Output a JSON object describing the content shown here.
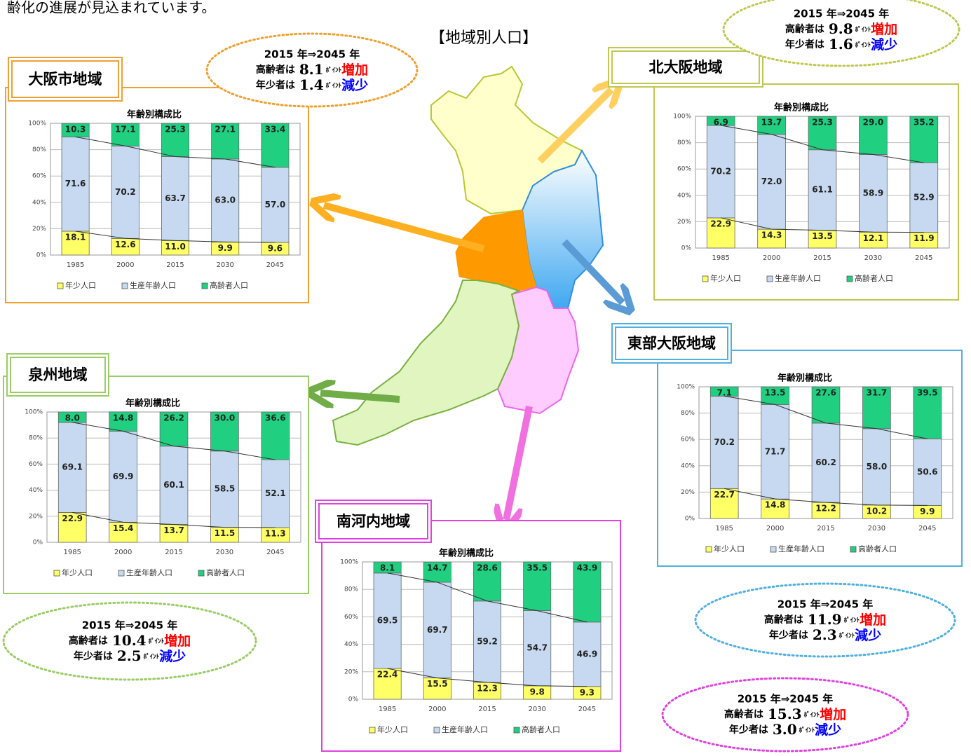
{
  "header": {
    "intro": "齢化の進展が見込まれています。",
    "map_title": "【地域別人口】"
  },
  "chart_data": [
    {
      "type": "bar",
      "stacked": true,
      "region": "大阪市地域",
      "title": "年齢別構成比",
      "border_color": "#f0a030",
      "categories": [
        "1985",
        "2000",
        "2015",
        "2030",
        "2045"
      ],
      "ylim": [
        0,
        100
      ],
      "yticks": [
        {
          "value": 0,
          "label": "0%"
        },
        {
          "value": 20,
          "label": "20%"
        },
        {
          "value": 40,
          "label": "40%"
        },
        {
          "value": 60,
          "label": "60%"
        },
        {
          "value": 80,
          "label": "80%"
        },
        {
          "value": 100,
          "label": "100%"
        }
      ],
      "grid": true,
      "series": [
        {
          "name": "年少人口",
          "color": "#ffff66",
          "values": [
            18.1,
            12.6,
            11.0,
            9.9,
            9.6
          ],
          "value_labels": [
            "18.1",
            "12.6",
            "11.0",
            "9.9",
            "9.6"
          ]
        },
        {
          "name": "生産年齢人口",
          "color": "#c6d9f0",
          "values": [
            71.6,
            70.2,
            63.7,
            63.0,
            57.0
          ],
          "value_labels": [
            "71.6",
            "70.2",
            "63.7",
            "63.0",
            "57.0"
          ]
        },
        {
          "name": "高齢者人口",
          "color": "#20d080",
          "values": [
            10.3,
            17.1,
            25.3,
            27.1,
            33.4
          ],
          "value_labels": [
            "10.3",
            "17.1",
            "25.3",
            "27.1",
            "33.4"
          ]
        }
      ],
      "callout": {
        "period": "2015 年⇒2045 年",
        "elderly_label": "高齢者は",
        "elderly_value": "8.1",
        "elderly_unit": "ﾎﾟｲﾝﾄ",
        "elderly_change": "増加",
        "youth_label": "年少者は",
        "youth_value": "1.4",
        "youth_unit": "ﾎﾟｲﾝﾄ",
        "youth_change": "減少"
      }
    },
    {
      "type": "bar",
      "stacked": true,
      "region": "北大阪地域",
      "title": "年齢別構成比",
      "border_color": "#c0c850",
      "categories": [
        "1985",
        "2000",
        "2015",
        "2030",
        "2045"
      ],
      "ylim": [
        0,
        100
      ],
      "yticks": [
        {
          "value": 0,
          "label": "0%"
        },
        {
          "value": 20,
          "label": "20%"
        },
        {
          "value": 40,
          "label": "40%"
        },
        {
          "value": 60,
          "label": "60%"
        },
        {
          "value": 80,
          "label": "80%"
        },
        {
          "value": 100,
          "label": "100%"
        }
      ],
      "grid": true,
      "series": [
        {
          "name": "年少人口",
          "color": "#ffff66",
          "values": [
            22.9,
            14.3,
            13.5,
            12.1,
            11.9
          ],
          "value_labels": [
            "22.9",
            "14.3",
            "13.5",
            "12.1",
            "11.9"
          ]
        },
        {
          "name": "生産年齢人口",
          "color": "#c6d9f0",
          "values": [
            70.2,
            72.0,
            61.1,
            58.9,
            52.9
          ],
          "value_labels": [
            "70.2",
            "72.0",
            "61.1",
            "58.9",
            "52.9"
          ]
        },
        {
          "name": "高齢者人口",
          "color": "#20d080",
          "values": [
            6.9,
            13.7,
            25.3,
            29.0,
            35.2
          ],
          "value_labels": [
            "6.9",
            "13.7",
            "25.3",
            "29.0",
            "35.2"
          ]
        }
      ],
      "callout": {
        "period": "2015 年⇒2045 年",
        "elderly_label": "高齢者は",
        "elderly_value": "9.8",
        "elderly_unit": "ﾎﾟｲﾝﾄ",
        "elderly_change": "増加",
        "youth_label": "年少者は",
        "youth_value": "1.6",
        "youth_unit": "ﾎﾟｲﾝﾄ",
        "youth_change": "減少"
      }
    },
    {
      "type": "bar",
      "stacked": true,
      "region": "東部大阪地域",
      "title": "年齢別構成比",
      "border_color": "#50b0e0",
      "categories": [
        "1985",
        "2000",
        "2015",
        "2030",
        "2045"
      ],
      "ylim": [
        0,
        100
      ],
      "yticks": [
        {
          "value": 0,
          "label": "0%"
        },
        {
          "value": 20,
          "label": "20%"
        },
        {
          "value": 40,
          "label": "40%"
        },
        {
          "value": 60,
          "label": "60%"
        },
        {
          "value": 80,
          "label": "80%"
        },
        {
          "value": 100,
          "label": "100%"
        }
      ],
      "grid": true,
      "series": [
        {
          "name": "年少人口",
          "color": "#ffff66",
          "values": [
            22.7,
            14.8,
            12.2,
            10.2,
            9.9
          ],
          "value_labels": [
            "22.7",
            "14.8",
            "12.2",
            "10.2",
            "9.9"
          ]
        },
        {
          "name": "生産年齢人口",
          "color": "#c6d9f0",
          "values": [
            70.2,
            71.7,
            60.2,
            58.0,
            50.6
          ],
          "value_labels": [
            "70.2",
            "71.7",
            "60.2",
            "58.0",
            "50.6"
          ]
        },
        {
          "name": "高齢者人口",
          "color": "#20d080",
          "values": [
            7.1,
            13.5,
            27.6,
            31.7,
            39.5
          ],
          "value_labels": [
            "7.1",
            "13.5",
            "27.6",
            "31.7",
            "39.5"
          ]
        }
      ],
      "callout": {
        "period": "2015 年⇒2045 年",
        "elderly_label": "高齢者は",
        "elderly_value": "11.9",
        "elderly_unit": "ﾎﾟｲﾝﾄ",
        "elderly_change": "増加",
        "youth_label": "年少者は",
        "youth_value": "2.3",
        "youth_unit": "ﾎﾟｲﾝﾄ",
        "youth_change": "減少"
      }
    },
    {
      "type": "bar",
      "stacked": true,
      "region": "泉州地域",
      "title": "年齢別構成比",
      "border_color": "#9bcc66",
      "categories": [
        "1985",
        "2000",
        "2015",
        "2030",
        "2045"
      ],
      "ylim": [
        0,
        100
      ],
      "yticks": [
        {
          "value": 0,
          "label": "0%"
        },
        {
          "value": 20,
          "label": "20%"
        },
        {
          "value": 40,
          "label": "40%"
        },
        {
          "value": 60,
          "label": "60%"
        },
        {
          "value": 80,
          "label": "80%"
        },
        {
          "value": 100,
          "label": "100%"
        }
      ],
      "grid": true,
      "series": [
        {
          "name": "年少人口",
          "color": "#ffff66",
          "values": [
            22.9,
            15.4,
            13.7,
            11.5,
            11.3
          ],
          "value_labels": [
            "22.9",
            "15.4",
            "13.7",
            "11.5",
            "11.3"
          ]
        },
        {
          "name": "生産年齢人口",
          "color": "#c6d9f0",
          "values": [
            69.1,
            69.9,
            60.1,
            58.5,
            52.1
          ],
          "value_labels": [
            "69.1",
            "69.9",
            "60.1",
            "58.5",
            "52.1"
          ]
        },
        {
          "name": "高齢者人口",
          "color": "#20d080",
          "values": [
            8.0,
            14.8,
            26.2,
            30.0,
            36.6
          ],
          "value_labels": [
            "8.0",
            "14.8",
            "26.2",
            "30.0",
            "36.6"
          ]
        }
      ],
      "callout": {
        "period": "2015 年⇒2045 年",
        "elderly_label": "高齢者は",
        "elderly_value": "10.4",
        "elderly_unit": "ﾎﾟｲﾝﾄ",
        "elderly_change": "増加",
        "youth_label": "年少者は",
        "youth_value": "2.5",
        "youth_unit": "ﾎﾟｲﾝﾄ",
        "youth_change": "減少"
      }
    },
    {
      "type": "bar",
      "stacked": true,
      "region": "南河内地域",
      "title": "年齢別構成比",
      "border_color": "#e040e0",
      "categories": [
        "1985",
        "2000",
        "2015",
        "2030",
        "2045"
      ],
      "ylim": [
        0,
        100
      ],
      "yticks": [
        {
          "value": 0,
          "label": "0%"
        },
        {
          "value": 20,
          "label": "20%"
        },
        {
          "value": 40,
          "label": "40%"
        },
        {
          "value": 60,
          "label": "60%"
        },
        {
          "value": 80,
          "label": "80%"
        },
        {
          "value": 100,
          "label": "100%"
        }
      ],
      "grid": true,
      "series": [
        {
          "name": "年少人口",
          "color": "#ffff66",
          "values": [
            22.4,
            15.5,
            12.3,
            9.8,
            9.3
          ],
          "value_labels": [
            "22.4",
            "15.5",
            "12.3",
            "9.8",
            "9.3"
          ]
        },
        {
          "name": "生産年齢人口",
          "color": "#c6d9f0",
          "values": [
            69.5,
            69.7,
            59.2,
            54.7,
            46.9
          ],
          "value_labels": [
            "69.5",
            "69.7",
            "59.2",
            "54.7",
            "46.9"
          ]
        },
        {
          "name": "高齢者人口",
          "color": "#20d080",
          "values": [
            8.1,
            14.7,
            28.6,
            35.5,
            43.9
          ],
          "value_labels": [
            "8.1",
            "14.7",
            "28.6",
            "35.5",
            "43.9"
          ]
        }
      ],
      "callout": {
        "period": "2015 年⇒2045 年",
        "elderly_label": "高齢者は",
        "elderly_value": "15.3",
        "elderly_unit": "ﾎﾟｲﾝﾄ",
        "elderly_change": "増加",
        "youth_label": "年少者は",
        "youth_value": "3.0",
        "youth_unit": "ﾎﾟｲﾝﾄ",
        "youth_change": "減少"
      }
    }
  ]
}
